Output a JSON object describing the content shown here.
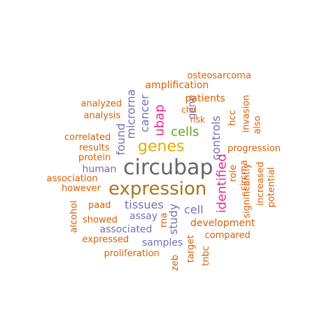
{
  "wordcloud": {
    "palette": {
      "orange": "#d95f02",
      "purple": "#7570b3",
      "magenta": "#e7298a",
      "green": "#66a61e",
      "gold": "#e6ab02",
      "brown": "#a6761d",
      "gray": "#666666"
    },
    "words": [
      {
        "text": "circubap",
        "color": "#666666"
      },
      {
        "text": "expression",
        "color": "#a6761d"
      },
      {
        "text": "genes",
        "color": "#e6ab02"
      },
      {
        "text": "cells",
        "color": "#66a61e"
      },
      {
        "text": "ubap",
        "color": "#e7298a"
      },
      {
        "text": "identified",
        "color": "#e7298a"
      },
      {
        "text": "tissues",
        "color": "#7570b3"
      },
      {
        "text": "cancer",
        "color": "#7570b3"
      },
      {
        "text": "microrna",
        "color": "#7570b3"
      },
      {
        "text": "found",
        "color": "#7570b3"
      },
      {
        "text": "controls",
        "color": "#7570b3"
      },
      {
        "text": "study",
        "color": "#7570b3"
      },
      {
        "text": "cell",
        "color": "#7570b3"
      },
      {
        "text": "human",
        "color": "#7570b3"
      },
      {
        "text": "assay",
        "color": "#7570b3"
      },
      {
        "text": "associated",
        "color": "#7570b3"
      },
      {
        "text": "samples",
        "color": "#7570b3"
      },
      {
        "text": "gene",
        "color": "#7570b3"
      },
      {
        "text": "amplification",
        "color": "#d95f02"
      },
      {
        "text": "osteosarcoma",
        "color": "#d95f02"
      },
      {
        "text": "patients",
        "color": "#d95f02"
      },
      {
        "text": "chd",
        "color": "#d95f02"
      },
      {
        "text": "risk",
        "color": "#d95f02"
      },
      {
        "text": "analyzed",
        "color": "#d95f02"
      },
      {
        "text": "analysis",
        "color": "#d95f02"
      },
      {
        "text": "correlated",
        "color": "#d95f02"
      },
      {
        "text": "results",
        "color": "#d95f02"
      },
      {
        "text": "protein",
        "color": "#d95f02"
      },
      {
        "text": "association",
        "color": "#d95f02"
      },
      {
        "text": "however",
        "color": "#d95f02"
      },
      {
        "text": "paad",
        "color": "#d95f02"
      },
      {
        "text": "alcohol",
        "color": "#d95f02"
      },
      {
        "text": "showed",
        "color": "#d95f02"
      },
      {
        "text": "expressed",
        "color": "#d95f02"
      },
      {
        "text": "proliferation",
        "color": "#d95f02"
      },
      {
        "text": "zeb",
        "color": "#d95f02"
      },
      {
        "text": "rna",
        "color": "#d95f02"
      },
      {
        "text": "target",
        "color": "#d95f02"
      },
      {
        "text": "tnbc",
        "color": "#d95f02"
      },
      {
        "text": "development",
        "color": "#d95f02"
      },
      {
        "text": "compared",
        "color": "#d95f02"
      },
      {
        "text": "progression",
        "color": "#d95f02"
      },
      {
        "text": "role",
        "color": "#d95f02"
      },
      {
        "text": "circrna",
        "color": "#d95f02"
      },
      {
        "text": "significantly",
        "color": "#d95f02"
      },
      {
        "text": "increased",
        "color": "#d95f02"
      },
      {
        "text": "potential",
        "color": "#d95f02"
      },
      {
        "text": "hcc",
        "color": "#d95f02"
      },
      {
        "text": "invasion",
        "color": "#d95f02"
      },
      {
        "text": "also",
        "color": "#d95f02"
      }
    ]
  }
}
